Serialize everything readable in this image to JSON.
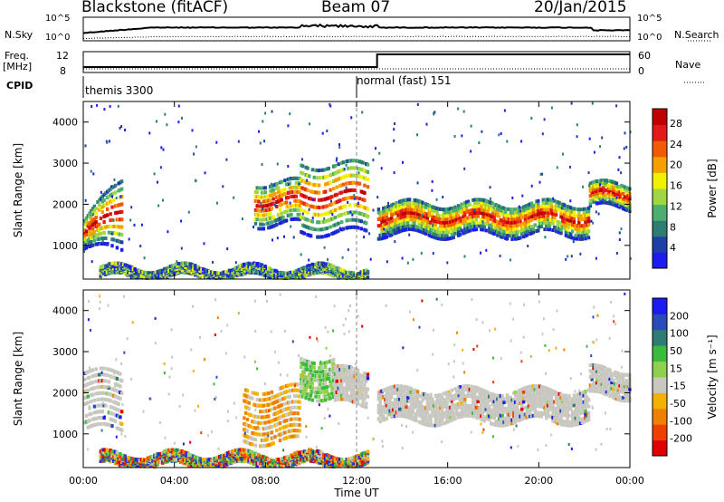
{
  "header": {
    "station": "Blackstone (fitACF)",
    "beam": "Beam 07",
    "date": "20/Jan/2015"
  },
  "top_panels": {
    "nsky_label": "N.Sky",
    "nsearch_label": "N.Search",
    "noise_ticks": [
      "10^5",
      "10^0"
    ],
    "freq_label": "Freq.",
    "freq_unit": "[MHz]",
    "freq_ticks": [
      "12",
      "8"
    ],
    "nave_label": "Nave",
    "nave_ticks": [
      "60",
      "0"
    ],
    "cpid_label": "CPID",
    "cpid_modes": [
      {
        "name": "themis 3300",
        "start": "00:00"
      },
      {
        "name": "normal (fast) 151",
        "start": "12:00"
      }
    ]
  },
  "chart_data": [
    {
      "type": "heatmap",
      "name": "power-panel",
      "xlabel": "Time UT",
      "ylabel": "Slant Range [km]",
      "x_ticks": [
        "00:00",
        "04:00",
        "08:00",
        "12:00",
        "16:00",
        "20:00",
        "00:00"
      ],
      "xlim_hours": [
        0,
        24
      ],
      "y_ticks": [
        1000,
        2000,
        3000,
        4000
      ],
      "ylim": [
        180,
        4500
      ],
      "colorbar": {
        "label": "Power [dB]",
        "ticks": [
          "4",
          "8",
          "12",
          "16",
          "20",
          "24",
          "28"
        ],
        "range": [
          0,
          30
        ],
        "colors": [
          "#1c1cf0",
          "#1f3fa8",
          "#2e7d74",
          "#4caf6f",
          "#9fd641",
          "#f2f200",
          "#f6a000",
          "#f05a00",
          "#e31a1c",
          "#c00000"
        ]
      },
      "bands": [
        {
          "t0": 0.0,
          "t1": 1.7,
          "r0": 900,
          "r1": 1650,
          "r1_end": 2800,
          "level": "high"
        },
        {
          "t0": 7.5,
          "t1": 9.5,
          "r0": 1500,
          "r1": 2600,
          "level": "high"
        },
        {
          "t0": 9.5,
          "t1": 12.5,
          "r0": 1300,
          "r1": 3100,
          "level": "high"
        },
        {
          "t0": 12.9,
          "t1": 22.2,
          "r0": 1250,
          "r1": 2050,
          "level": "high"
        },
        {
          "t0": 22.2,
          "t1": 24.0,
          "r0": 1900,
          "r1": 2500,
          "level": "mid"
        },
        {
          "t0": 0.7,
          "t1": 12.5,
          "r0": 200,
          "r1": 450,
          "level": "low"
        }
      ]
    },
    {
      "type": "heatmap",
      "name": "velocity-panel",
      "xlabel": "Time UT",
      "ylabel": "Slant Range [km]",
      "x_ticks": [
        "00:00",
        "04:00",
        "08:00",
        "12:00",
        "16:00",
        "20:00",
        "00:00"
      ],
      "xlim_hours": [
        0,
        24
      ],
      "y_ticks": [
        1000,
        2000,
        3000,
        4000
      ],
      "ylim": [
        180,
        4500
      ],
      "colorbar": {
        "label": "Velocity [m s^-1]",
        "ticks": [
          "200",
          "100",
          "50",
          "15",
          "-15",
          "-50",
          "-100",
          "-200"
        ],
        "range": [
          -250,
          250
        ],
        "colors": [
          "#1c1cf0",
          "#2a4bbb",
          "#2e7d74",
          "#3bbb3b",
          "#8fd14f",
          "#c8c8c0",
          "#f2b200",
          "#f08000",
          "#f04000",
          "#e00000"
        ]
      },
      "bands": [
        {
          "t0": 0.0,
          "t1": 1.7,
          "r0": 1100,
          "r1": 2600,
          "level": "ground"
        },
        {
          "t0": 7.0,
          "t1": 9.5,
          "r0": 800,
          "r1": 2200,
          "level": "away"
        },
        {
          "t0": 9.5,
          "t1": 11.0,
          "r0": 1900,
          "r1": 2900,
          "level": "toward"
        },
        {
          "t0": 11.0,
          "t1": 12.5,
          "r0": 1700,
          "r1": 2600,
          "level": "ground"
        },
        {
          "t0": 12.9,
          "t1": 22.2,
          "r0": 1300,
          "r1": 2100,
          "level": "ground"
        },
        {
          "t0": 22.2,
          "t1": 24.0,
          "r0": 1900,
          "r1": 2600,
          "level": "ground"
        },
        {
          "t0": 0.7,
          "t1": 12.5,
          "r0": 200,
          "r1": 500,
          "level": "mixed"
        }
      ]
    }
  ]
}
